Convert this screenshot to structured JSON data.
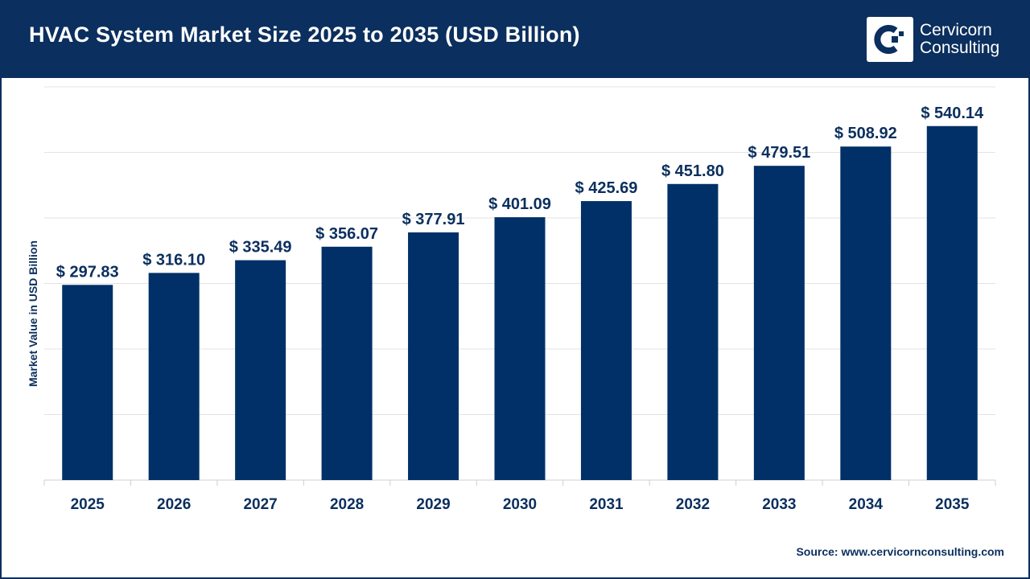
{
  "header": {
    "title": "HVAC System Market Size 2025 to 2035 (USD Billion)"
  },
  "logo": {
    "line1": "Cervicorn",
    "line2": "Consulting"
  },
  "source": "Source: www.cervicornconsulting.com",
  "colors": {
    "bar": "#003067",
    "header": "#0b2f5e",
    "text": "#0b2f5e",
    "grid": "#e3e3e3"
  },
  "chart_data": {
    "type": "bar",
    "title": "HVAC System Market Size 2025 to 2035 (USD Billion)",
    "xlabel": "",
    "ylabel": "Market Value in USD Billion",
    "ylim": [
      0,
      600
    ],
    "grid": true,
    "categories": [
      "2025",
      "2026",
      "2027",
      "2028",
      "2029",
      "2030",
      "2031",
      "2032",
      "2033",
      "2034",
      "2035"
    ],
    "values": [
      297.83,
      316.1,
      335.49,
      356.07,
      377.91,
      401.09,
      425.69,
      451.8,
      479.51,
      508.92,
      540.14
    ],
    "data_labels": [
      "$ 297.83",
      "$ 316.10",
      "$ 335.49",
      "$ 356.07",
      "$ 377.91",
      "$ 401.09",
      "$ 425.69",
      "$ 451.80",
      "$ 479.51",
      "$ 508.92",
      "$ 540.14"
    ]
  }
}
